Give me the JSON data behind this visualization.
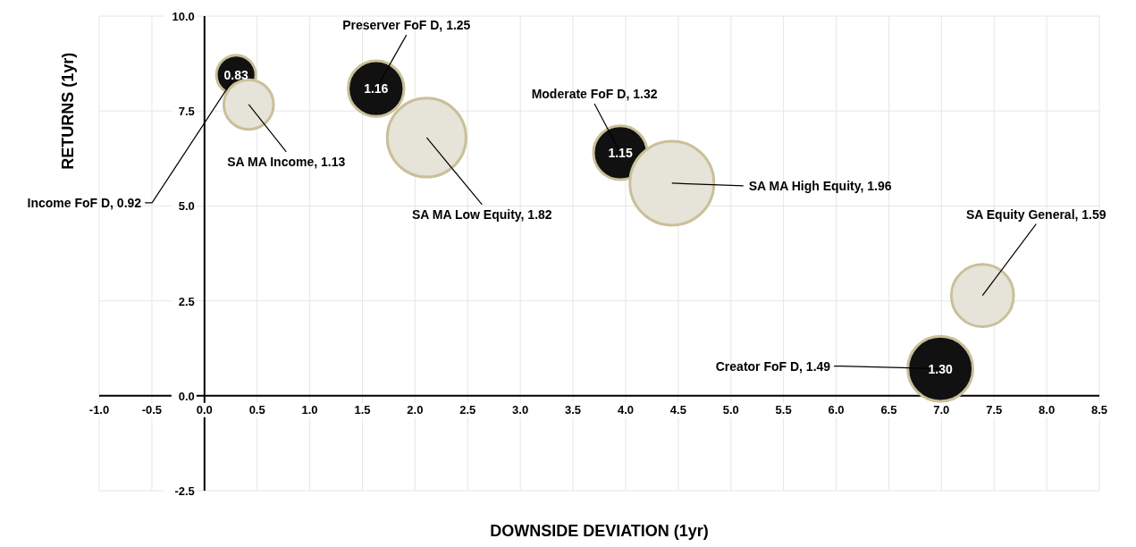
{
  "chart_data": {
    "type": "bubble",
    "xlabel": "DOWNSIDE DEVIATION (1yr)",
    "ylabel": "RETURNS (1yr)",
    "xlim": [
      -1,
      8.5
    ],
    "xticks": [
      {
        "value": -1,
        "label": "-1.0"
      },
      {
        "value": -0.5,
        "label": "-0.5"
      },
      {
        "value": 0,
        "label": "0.0"
      },
      0.5,
      {
        "value": 1,
        "label": "1.0"
      },
      1.5,
      {
        "value": 2,
        "label": "2.0"
      },
      2.5,
      {
        "value": 3,
        "label": "3.0"
      },
      3.5,
      {
        "value": 4,
        "label": "4.0"
      },
      4.5,
      {
        "value": 5,
        "label": "5.0"
      },
      5.5,
      {
        "value": 6,
        "label": "6.0"
      },
      6.5,
      {
        "value": 7,
        "label": "7.0"
      },
      7.5,
      {
        "value": 8,
        "label": "8.0"
      },
      8.5
    ],
    "ylim": [
      -2.5,
      10
    ],
    "yticks": [
      -2.5,
      {
        "value": 0,
        "label": "0.0"
      },
      2.5,
      {
        "value": 5,
        "label": "5.0"
      },
      7.5,
      {
        "value": 10,
        "label": "10.0"
      }
    ],
    "grid": true,
    "series": [
      {
        "color": "#111111",
        "x": [
          0.3,
          1.63,
          3.95,
          6.99
        ],
        "values": [
          8.45,
          8.09,
          6.4,
          0.71
        ],
        "sizes": [
          0.22,
          0.44,
          0.41,
          0.6
        ]
      },
      {
        "color": "#e6e3d8",
        "x": [
          0.42,
          2.11,
          4.44,
          7.39
        ],
        "values": [
          7.67,
          6.8,
          5.6,
          2.64
        ],
        "sizes": [
          0.35,
          0.88,
          1,
          0.55
        ]
      }
    ],
    "annotations": [
      {
        "text": "Income FoF D,  0.92",
        "x": 0.3,
        "y": 8.45
      },
      {
        "text": "Preserver FoF D,  1.25",
        "x": 1.63,
        "y": 8.09
      },
      {
        "text": "SA MA Income,  1.13",
        "x": 0.42,
        "y": 7.67
      },
      {
        "text": "SA MA Low Equity,  1.82",
        "x": 2.11,
        "y": 6.8
      },
      {
        "text": "Moderate FoF D,  1.32",
        "x": 3.95,
        "y": 6.4
      },
      {
        "text": "SA MA High Equity,  1.96",
        "x": 4.44,
        "y": 5.6
      },
      {
        "text": "SA Equity General,  1.59",
        "x": 7.39,
        "y": 2.64
      },
      {
        "text": "Creator FoF D,  1.49",
        "x": 6.99,
        "y": 0.71
      },
      {
        "text": "0.83",
        "x": 0.3,
        "y": 8.45
      },
      {
        "text": "1.16",
        "x": 1.63,
        "y": 8.09
      },
      {
        "text": "1.15",
        "x": 3.95,
        "y": 6.4
      },
      {
        "text": "1.30",
        "x": 6.99,
        "y": 0.71
      }
    ]
  }
}
